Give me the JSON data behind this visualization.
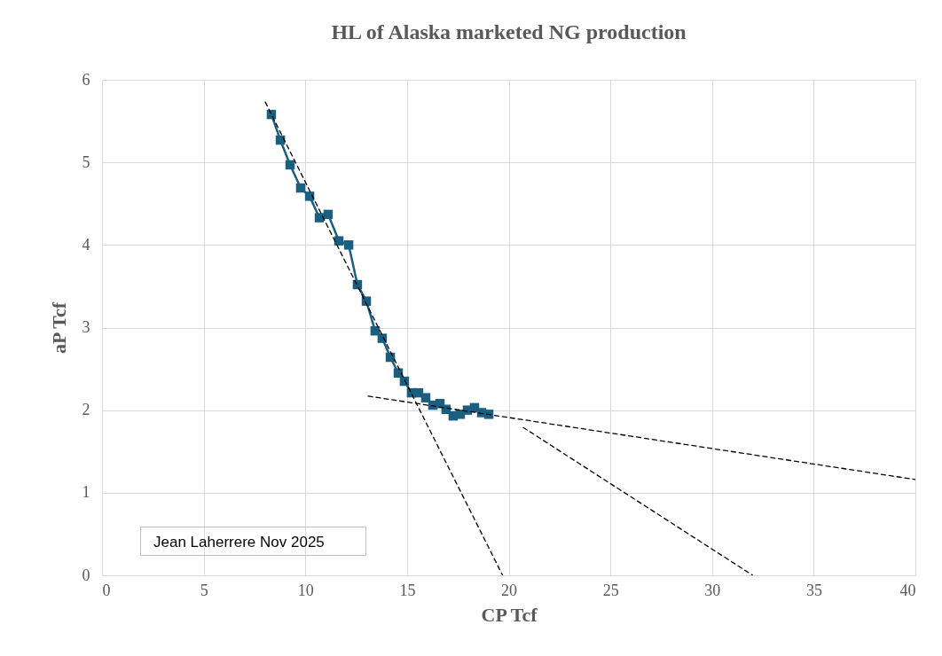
{
  "chart_data": {
    "type": "line",
    "title": "HL of Alaska marketed NG production",
    "xlabel": "CP Tcf",
    "ylabel": "aP Tcf",
    "xlim": [
      0,
      40
    ],
    "xticks": [
      0,
      5,
      10,
      15,
      20,
      25,
      30,
      35,
      40
    ],
    "ylim": [
      0,
      6
    ],
    "yticks": [
      0,
      1,
      2,
      3,
      4,
      5,
      6
    ],
    "grid": true,
    "marker": "square",
    "line_style": "solid",
    "annotations": [
      "Jean Laherrere Nov 2025"
    ],
    "series": [
      {
        "color": "#1b5f80",
        "x": [
          8.33,
          8.77,
          9.25,
          9.77,
          10.21,
          10.69,
          11.12,
          11.65,
          12.13,
          12.56,
          13.0,
          13.43,
          13.78,
          14.18,
          14.57,
          14.87,
          15.22,
          15.57,
          15.92,
          16.27,
          16.62,
          16.92,
          17.27,
          17.62,
          17.97,
          18.32,
          18.67,
          19.02
        ],
        "values": [
          5.58,
          5.27,
          4.97,
          4.69,
          4.59,
          4.33,
          4.37,
          4.05,
          4.0,
          3.52,
          3.32,
          2.96,
          2.87,
          2.64,
          2.45,
          2.35,
          2.21,
          2.21,
          2.15,
          2.06,
          2.08,
          2.01,
          1.93,
          1.95,
          2.0,
          2.03,
          1.97,
          1.95
        ]
      },
      {
        "type": "line",
        "color": "#000000",
        "marker": "none",
        "line_style": "dashed",
        "x": [
          8.03,
          19.7
        ],
        "values": [
          5.73,
          0
        ]
      },
      {
        "type": "line",
        "color": "#000000",
        "marker": "none",
        "line_style": "dashed",
        "x": [
          13.09,
          40
        ],
        "values": [
          2.17,
          1.16
        ]
      },
      {
        "type": "line",
        "color": "#000000",
        "marker": "none",
        "line_style": "dashed",
        "x": [
          20.72,
          32
        ],
        "values": [
          1.79,
          0
        ]
      }
    ]
  }
}
